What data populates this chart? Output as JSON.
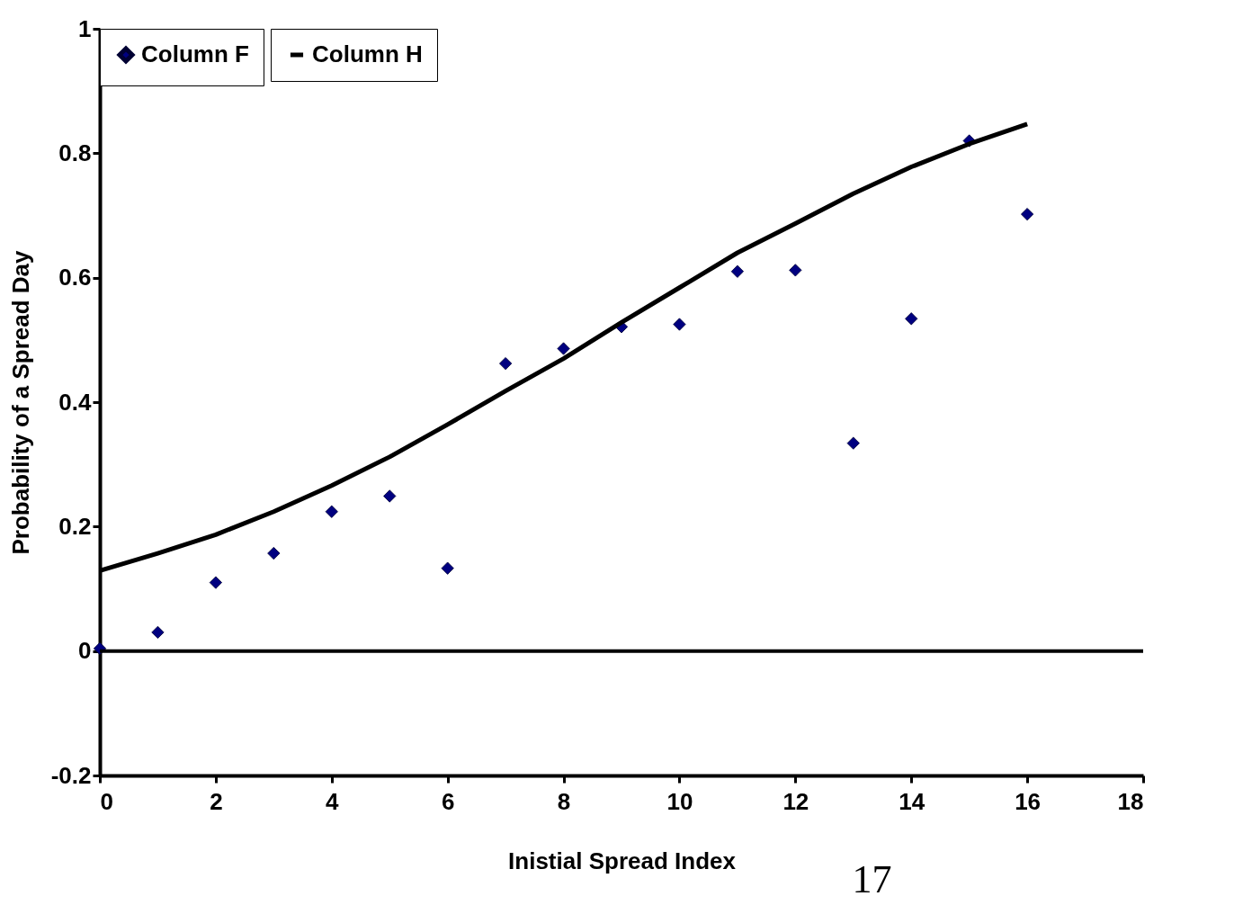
{
  "chart_data": {
    "type": "scatter",
    "xlabel": "Inistial Spread Index",
    "ylabel": "Probability of a Spread Day",
    "x": [
      0,
      1,
      2,
      3,
      4,
      5,
      6,
      7,
      8,
      9,
      10,
      11,
      12,
      13,
      14,
      15,
      16
    ],
    "series": [
      {
        "name": "Column F",
        "color": "#000080",
        "marker": "diamond",
        "values": [
          0.004,
          0.03,
          0.11,
          0.157,
          0.224,
          0.249,
          0.133,
          0.462,
          0.486,
          0.521,
          0.525,
          0.61,
          0.612,
          0.334,
          0.534,
          0.82,
          0.702
        ]
      },
      {
        "name": "Column H",
        "type": "line",
        "color": "#000000",
        "line_style": "solid",
        "values": [
          0.129,
          0.157,
          0.187,
          0.224,
          0.266,
          0.312,
          0.364,
          0.418,
          0.47,
          0.528,
          0.584,
          0.64,
          0.687,
          0.735,
          0.778,
          0.815,
          0.847
        ]
      }
    ],
    "xlim": [
      0,
      18
    ],
    "xticks": [
      0,
      2,
      4,
      6,
      8,
      10,
      12,
      14,
      16,
      18
    ],
    "ylim": [
      -0.2,
      1
    ],
    "yticks": [
      -0.2,
      0,
      0.2,
      0.4,
      0.6,
      0.8,
      1
    ],
    "ref_lines": [
      {
        "axis": "y",
        "value": 0,
        "color": "#000000"
      }
    ],
    "grid": false,
    "legend": "top left",
    "annotations": [
      "17"
    ]
  }
}
